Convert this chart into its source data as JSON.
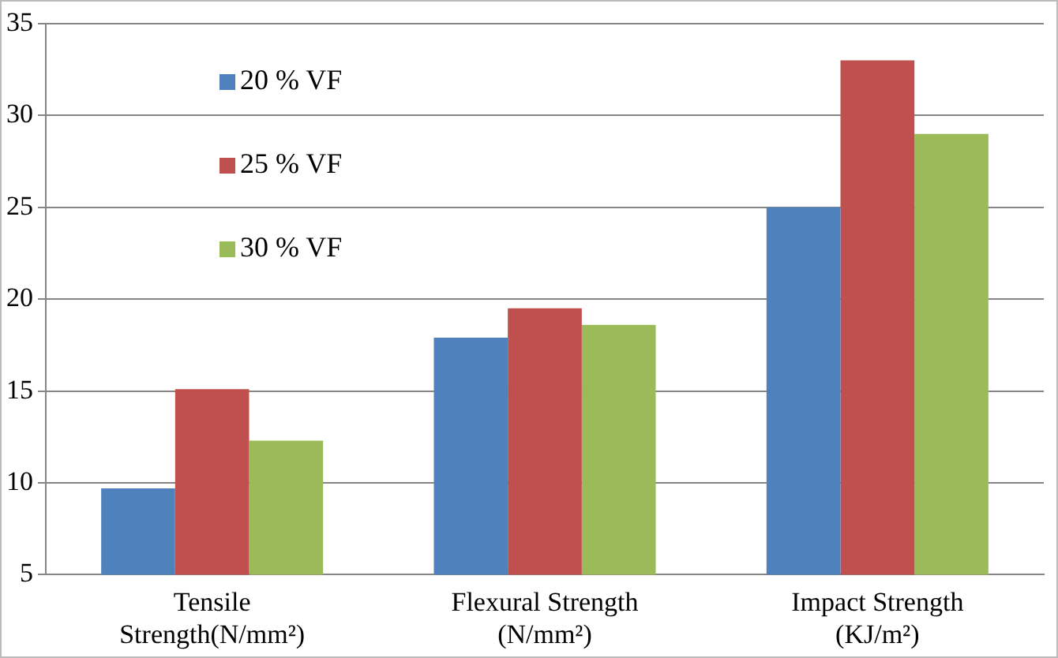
{
  "chart_data": {
    "type": "bar",
    "categories": [
      "Tensile\nStrength(N/mm²)",
      "Flexural Strength\n(N/mm²)",
      "Impact Strength\n(KJ/m²)"
    ],
    "series": [
      {
        "name": "20 % VF",
        "color": "#4f81bd",
        "values": [
          9.7,
          17.9,
          25
        ]
      },
      {
        "name": "25 % VF",
        "color": "#c0504d",
        "values": [
          15.1,
          19.5,
          33
        ]
      },
      {
        "name": "30 % VF",
        "color": "#9bbb59",
        "values": [
          12.3,
          18.6,
          29
        ]
      }
    ],
    "ylim": [
      5,
      35
    ],
    "yticks": [
      5,
      10,
      15,
      20,
      25,
      30,
      35
    ],
    "grid": "y",
    "legend": "top left"
  }
}
